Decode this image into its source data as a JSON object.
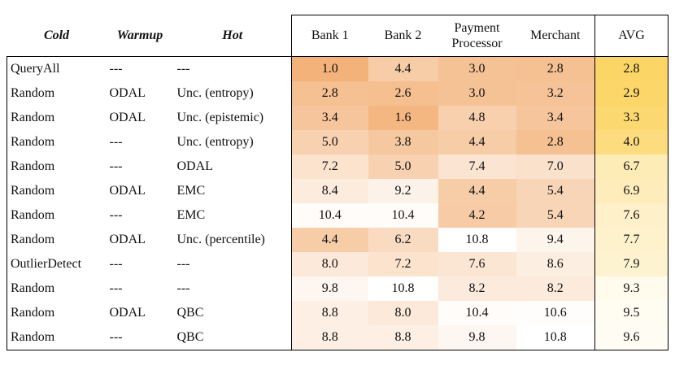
{
  "headers": {
    "cold": "Cold",
    "warmup": "Warmup",
    "hot": "Hot",
    "datasets": [
      "Bank 1",
      "Bank 2",
      "Payment Processor",
      "Merchant"
    ],
    "payment_line1": "Payment",
    "payment_line2": "Processor",
    "avg": "AVG"
  },
  "rows": [
    {
      "cold": "QueryAll",
      "warmup": "---",
      "hot": "---",
      "values": [
        "1.0",
        "4.4",
        "3.0",
        "2.8"
      ],
      "avg": "2.8"
    },
    {
      "cold": "Random",
      "warmup": "ODAL",
      "hot": "Unc. (entropy)",
      "values": [
        "2.8",
        "2.6",
        "3.0",
        "3.2"
      ],
      "avg": "2.9"
    },
    {
      "cold": "Random",
      "warmup": "ODAL",
      "hot": "Unc. (epistemic)",
      "values": [
        "3.4",
        "1.6",
        "4.8",
        "3.4"
      ],
      "avg": "3.3"
    },
    {
      "cold": "Random",
      "warmup": "---",
      "hot": "Unc. (entropy)",
      "values": [
        "5.0",
        "3.8",
        "4.4",
        "2.8"
      ],
      "avg": "4.0"
    },
    {
      "cold": "Random",
      "warmup": "---",
      "hot": "ODAL",
      "values": [
        "7.2",
        "5.0",
        "7.4",
        "7.0"
      ],
      "avg": "6.7"
    },
    {
      "cold": "Random",
      "warmup": "ODAL",
      "hot": "EMC",
      "values": [
        "8.4",
        "9.2",
        "4.4",
        "5.4"
      ],
      "avg": "6.9"
    },
    {
      "cold": "Random",
      "warmup": "---",
      "hot": "EMC",
      "values": [
        "10.4",
        "10.4",
        "4.2",
        "5.4"
      ],
      "avg": "7.6"
    },
    {
      "cold": "Random",
      "warmup": "ODAL",
      "hot": "Unc. (percentile)",
      "values": [
        "4.4",
        "6.2",
        "10.8",
        "9.4"
      ],
      "avg": "7.7"
    },
    {
      "cold": "OutlierDetect",
      "warmup": "---",
      "hot": "---",
      "values": [
        "8.0",
        "7.2",
        "7.6",
        "8.6"
      ],
      "avg": "7.9"
    },
    {
      "cold": "Random",
      "warmup": "---",
      "hot": "---",
      "values": [
        "9.8",
        "10.8",
        "8.2",
        "8.2"
      ],
      "avg": "9.3"
    },
    {
      "cold": "Random",
      "warmup": "ODAL",
      "hot": "QBC",
      "values": [
        "8.8",
        "8.0",
        "10.4",
        "10.6"
      ],
      "avg": "9.5"
    },
    {
      "cold": "Random",
      "warmup": "---",
      "hot": "QBC",
      "values": [
        "8.8",
        "8.8",
        "9.8",
        "10.8"
      ],
      "avg": "9.6"
    }
  ],
  "colors": {
    "rank_low": "#f3b27a",
    "rank_high": "#ffffff",
    "avg_low": "#fcd567",
    "avg_high": "#fffdf3",
    "border": "#000000"
  }
}
